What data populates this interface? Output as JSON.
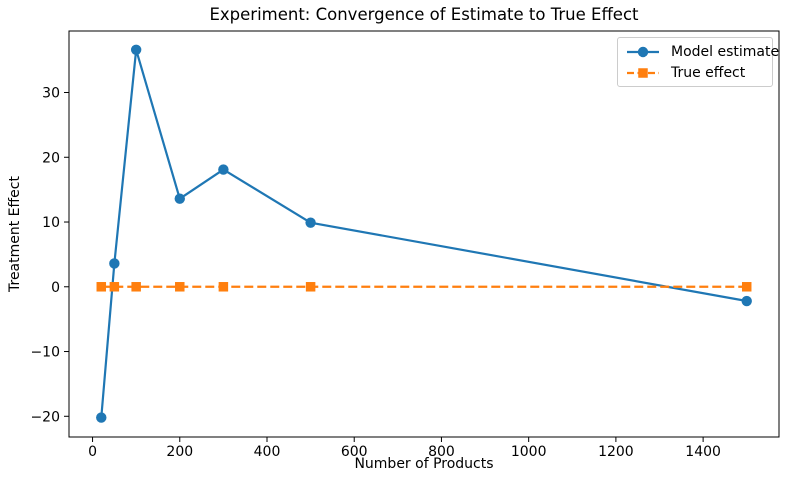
{
  "chart_data": {
    "type": "line",
    "title": "Experiment: Convergence of Estimate to True Effect",
    "xlabel": "Number of Products",
    "ylabel": "Treatment Effect",
    "x": [
      20,
      50,
      100,
      200,
      300,
      500,
      1500
    ],
    "series": [
      {
        "name": "Model estimate",
        "values": [
          -20.2,
          3.6,
          36.6,
          13.6,
          18.1,
          9.9,
          -2.2
        ],
        "color": "#1f77b4",
        "marker": "circle",
        "linestyle": "solid"
      },
      {
        "name": "True effect",
        "values": [
          0,
          0,
          0,
          0,
          0,
          0,
          0
        ],
        "color": "#ff7f0e",
        "marker": "square",
        "linestyle": "dashed"
      }
    ],
    "xticks": [
      0,
      200,
      400,
      600,
      800,
      1000,
      1200,
      1400
    ],
    "yticks": [
      -20,
      -10,
      0,
      10,
      20,
      30
    ],
    "xlim": [
      -54,
      1574
    ],
    "ylim": [
      -23.2,
      39.5
    ],
    "grid": false,
    "legend_position": "upper right",
    "axis_color": "#000000",
    "legend_border_color": "#cccccc",
    "background": "#ffffff"
  }
}
